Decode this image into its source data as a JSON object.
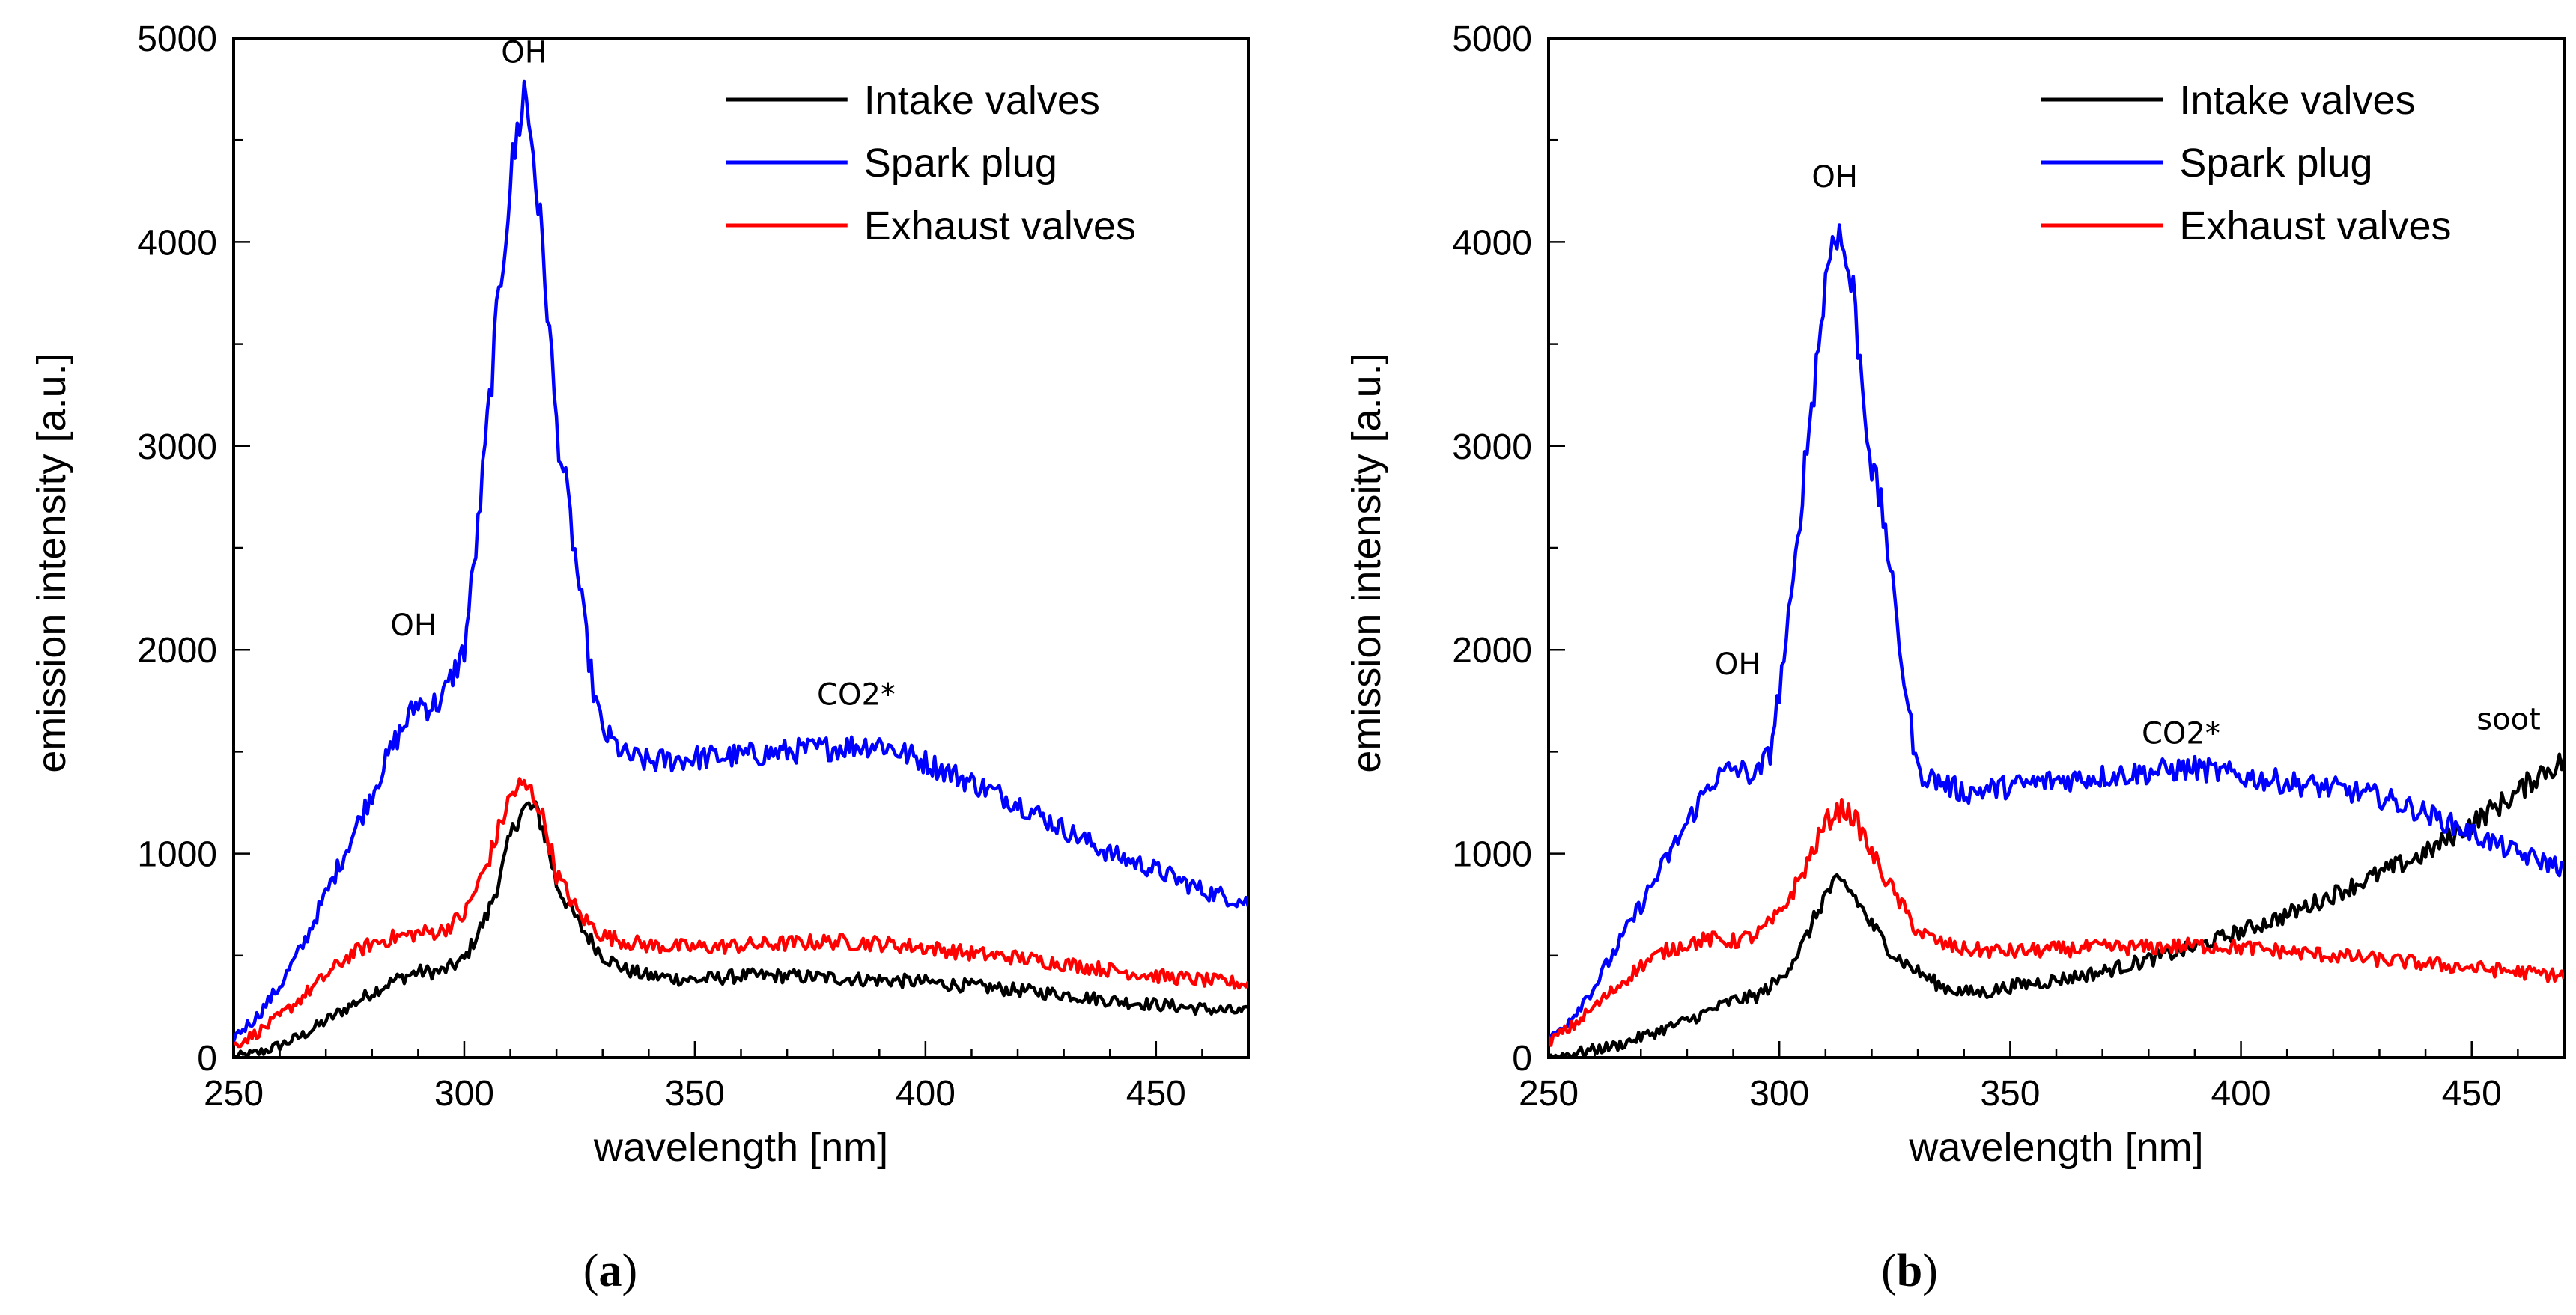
{
  "chart_data": [
    {
      "type": "line",
      "panel_label": "(a)",
      "xlabel": "wavelength [nm]",
      "ylabel": "emission intensity [a.u.]",
      "xlim": [
        250,
        470
      ],
      "ylim": [
        0,
        5000
      ],
      "x_ticks": [
        250,
        300,
        350,
        400,
        450
      ],
      "y_ticks": [
        0,
        1000,
        2000,
        3000,
        4000,
        5000
      ],
      "legend_position": "top-right",
      "series": [
        {
          "name": "Intake valves",
          "color": "#000000",
          "x": [
            250,
            255,
            260,
            265,
            270,
            275,
            280,
            285,
            290,
            295,
            300,
            305,
            308,
            310,
            312,
            314,
            316,
            318,
            320,
            325,
            330,
            335,
            340,
            345,
            350,
            355,
            360,
            370,
            380,
            390,
            400,
            410,
            420,
            430,
            440,
            450,
            460,
            470
          ],
          "values": [
            0,
            20,
            60,
            110,
            180,
            250,
            320,
            380,
            420,
            420,
            480,
            700,
            900,
            1080,
            1200,
            1230,
            1200,
            1050,
            850,
            650,
            500,
            430,
            400,
            390,
            380,
            390,
            400,
            400,
            390,
            380,
            370,
            350,
            330,
            310,
            280,
            260,
            240,
            220
          ]
        },
        {
          "name": "Spark plug",
          "color": "#0000ff",
          "x": [
            250,
            255,
            260,
            265,
            270,
            275,
            280,
            285,
            290,
            292,
            295,
            300,
            303,
            305,
            307,
            310,
            312,
            313,
            315,
            318,
            320,
            322,
            325,
            328,
            330,
            335,
            340,
            350,
            360,
            370,
            380,
            390,
            400,
            410,
            420,
            430,
            440,
            450,
            460,
            470
          ],
          "values": [
            100,
            200,
            350,
            550,
            800,
            1050,
            1300,
            1550,
            1750,
            1720,
            1750,
            2000,
            2600,
            3100,
            3600,
            4300,
            4600,
            4750,
            4450,
            3700,
            3100,
            2800,
            2300,
            1800,
            1600,
            1480,
            1450,
            1470,
            1480,
            1500,
            1520,
            1540,
            1450,
            1350,
            1250,
            1120,
            1000,
            920,
            820,
            760
          ]
        },
        {
          "name": "Exhaust valves",
          "color": "#ff0000",
          "x": [
            250,
            255,
            260,
            265,
            270,
            275,
            280,
            285,
            290,
            295,
            300,
            305,
            308,
            310,
            312,
            314,
            316,
            318,
            320,
            325,
            330,
            335,
            340,
            350,
            360,
            370,
            380,
            390,
            400,
            410,
            420,
            430,
            440,
            450,
            460,
            470
          ],
          "values": [
            60,
            120,
            200,
            300,
            400,
            500,
            560,
            590,
            610,
            620,
            700,
            950,
            1150,
            1280,
            1330,
            1320,
            1250,
            1100,
            900,
            700,
            600,
            570,
            550,
            540,
            550,
            560,
            570,
            560,
            540,
            510,
            490,
            460,
            430,
            400,
            380,
            360
          ]
        }
      ],
      "annotations": [
        {
          "text": "OH",
          "x": 313,
          "y": 4880
        },
        {
          "text": "OH",
          "x": 289,
          "y": 2070
        },
        {
          "text": "CO2*",
          "x": 385,
          "y": 1730
        }
      ]
    },
    {
      "type": "line",
      "panel_label": "(b)",
      "xlabel": "wavelength [nm]",
      "ylabel": "emission intensity [a.u.]",
      "xlim": [
        250,
        470
      ],
      "ylim": [
        0,
        5000
      ],
      "x_ticks": [
        250,
        300,
        350,
        400,
        450
      ],
      "y_ticks": [
        0,
        1000,
        2000,
        3000,
        4000,
        5000
      ],
      "legend_position": "top-right",
      "series": [
        {
          "name": "Intake valves",
          "color": "#000000",
          "x": [
            250,
            255,
            260,
            265,
            270,
            275,
            280,
            285,
            290,
            295,
            300,
            305,
            308,
            310,
            312,
            314,
            316,
            320,
            325,
            330,
            335,
            340,
            345,
            350,
            360,
            370,
            380,
            390,
            400,
            410,
            420,
            430,
            440,
            450,
            460,
            465,
            470
          ],
          "values": [
            0,
            20,
            40,
            60,
            100,
            140,
            180,
            230,
            280,
            300,
            380,
            550,
            700,
            800,
            850,
            850,
            800,
            650,
            500,
            420,
            350,
            320,
            320,
            350,
            380,
            420,
            480,
            540,
            620,
            700,
            800,
            900,
            1000,
            1150,
            1300,
            1400,
            1450
          ]
        },
        {
          "name": "Spark plug",
          "color": "#0000ff",
          "x": [
            250,
            255,
            260,
            265,
            270,
            275,
            280,
            285,
            290,
            295,
            298,
            300,
            303,
            305,
            308,
            310,
            312,
            314,
            316,
            318,
            320,
            323,
            325,
            328,
            330,
            335,
            340,
            350,
            360,
            370,
            380,
            390,
            400,
            410,
            420,
            430,
            440,
            450,
            460,
            470
          ],
          "values": [
            80,
            200,
            350,
            550,
            750,
            950,
            1150,
            1350,
            1420,
            1380,
            1500,
            1800,
            2300,
            2800,
            3400,
            3800,
            4100,
            3950,
            3750,
            3300,
            2900,
            2600,
            2200,
            1700,
            1400,
            1350,
            1300,
            1330,
            1360,
            1380,
            1400,
            1420,
            1380,
            1350,
            1320,
            1280,
            1200,
            1100,
            1000,
            930
          ]
        },
        {
          "name": "Exhaust valves",
          "color": "#ff0000",
          "x": [
            250,
            255,
            260,
            265,
            270,
            275,
            280,
            285,
            290,
            295,
            300,
            305,
            308,
            310,
            312,
            314,
            316,
            318,
            320,
            325,
            330,
            335,
            340,
            350,
            360,
            370,
            380,
            390,
            400,
            410,
            420,
            430,
            440,
            450,
            460,
            470
          ],
          "values": [
            80,
            150,
            250,
            350,
            450,
            520,
            560,
            580,
            570,
            600,
            700,
            900,
            1050,
            1150,
            1200,
            1220,
            1180,
            1100,
            1000,
            800,
            620,
            560,
            530,
            520,
            530,
            540,
            540,
            550,
            540,
            520,
            500,
            480,
            460,
            440,
            420,
            400
          ]
        }
      ],
      "annotations": [
        {
          "text": "OH",
          "x": 312,
          "y": 4270
        },
        {
          "text": "OH",
          "x": 291,
          "y": 1880
        },
        {
          "text": "CO2*",
          "x": 387,
          "y": 1540
        },
        {
          "text": "soot",
          "x": 458,
          "y": 1610
        }
      ]
    }
  ]
}
